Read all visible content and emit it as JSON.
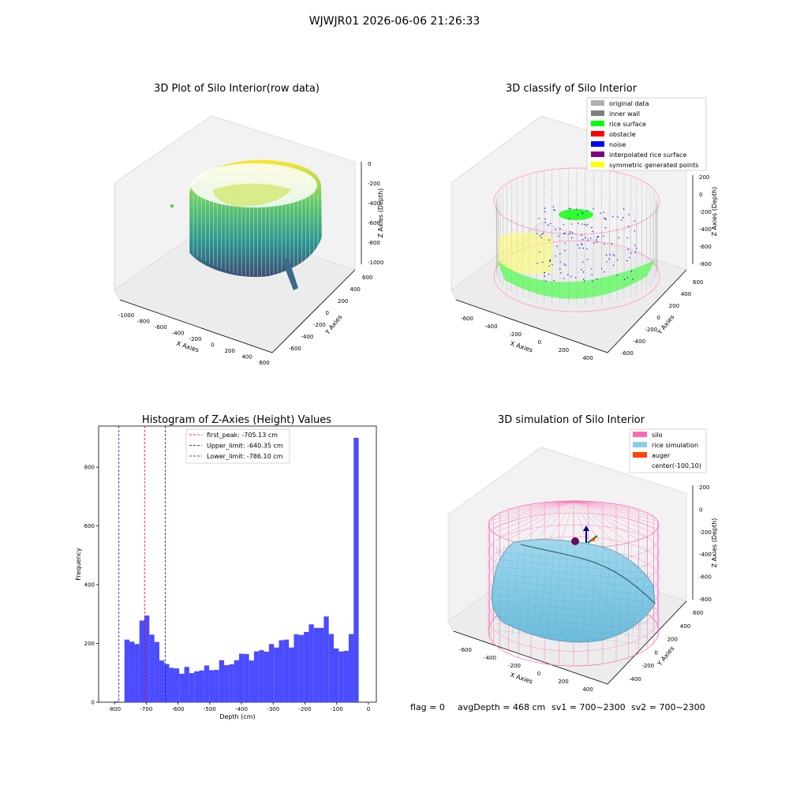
{
  "figure_title": "WJWJR01 2026-06-06 21:26:33",
  "status": {
    "flag": "flag = 0",
    "avg_depth": "avgDepth = 468 cm",
    "sv1": "sv1 = 700~2300",
    "sv2": "sv2 = 700~2300"
  },
  "chart_data": [
    {
      "type": "scatter",
      "title": "3D Plot of Silo Interior(row data)",
      "xlabel": "X Axies",
      "ylabel": "Y Axies",
      "zlabel": "Z Axies (Depth)",
      "x_ticks": [
        "-1000",
        "-800",
        "-600",
        "-400",
        "-200",
        "0",
        "200",
        "400",
        "600"
      ],
      "y_ticks": [
        "-600",
        "-400",
        "-200",
        "0",
        "200",
        "400",
        "600"
      ],
      "z_ticks": [
        "0",
        "-200",
        "-400",
        "-600",
        "-800",
        "-1000"
      ],
      "colormap": [
        "#440154",
        "#3b528b",
        "#21918c",
        "#5ec962",
        "#fde725"
      ]
    },
    {
      "type": "scatter",
      "title": "3D classify of Silo Interior",
      "x_ticks": [
        "-600",
        "-400",
        "-200",
        "0",
        "200",
        "400"
      ],
      "y_ticks": [
        "-600",
        "-400",
        "-200",
        "0",
        "200",
        "400",
        "600"
      ],
      "z_ticks": [
        "200",
        "0",
        "-200",
        "-400",
        "-600",
        "-800"
      ],
      "xlabel": "X Axies",
      "ylabel": "Y Axies",
      "zlabel": "Z Axies (Depth)",
      "legend_position": "top-right",
      "legend": [
        {
          "label": "original data",
          "color": "#b0b0b0"
        },
        {
          "label": "inner wall",
          "color": "#808080"
        },
        {
          "label": "rice surface",
          "color": "#00ff00"
        },
        {
          "label": "obstacle",
          "color": "#ff0000"
        },
        {
          "label": "noise",
          "color": "#0000ff"
        },
        {
          "label": "interpolated rice surface",
          "color": "#800080"
        },
        {
          "label": "symmetric generated points",
          "color": "#ffff00"
        }
      ]
    },
    {
      "type": "bar",
      "title": "Histogram of Z-Axies (Height) Values",
      "xlabel": "Depth (cm)",
      "ylabel": "Frequency",
      "xlim": [
        -850,
        25
      ],
      "ylim": [
        0,
        940
      ],
      "x_ticks": [
        -800,
        -700,
        -600,
        -500,
        -400,
        -300,
        -200,
        -100,
        0
      ],
      "y_ticks": [
        0,
        200,
        400,
        600,
        800
      ],
      "bin_width": 15.7,
      "bar_color": "#4b4bff",
      "bins": [
        {
          "x0": -800,
          "value": 3
        },
        {
          "x0": -784.3,
          "value": 0
        },
        {
          "x0": -768.6,
          "value": 213
        },
        {
          "x0": -752.9,
          "value": 206
        },
        {
          "x0": -737.2,
          "value": 198
        },
        {
          "x0": -721.5,
          "value": 278
        },
        {
          "x0": -705.8,
          "value": 295
        },
        {
          "x0": -690.1,
          "value": 230
        },
        {
          "x0": -674.4,
          "value": 205
        },
        {
          "x0": -658.7,
          "value": 142
        },
        {
          "x0": -643.0,
          "value": 130
        },
        {
          "x0": -627.3,
          "value": 117
        },
        {
          "x0": -611.6,
          "value": 115
        },
        {
          "x0": -595.9,
          "value": 97
        },
        {
          "x0": -580.2,
          "value": 120
        },
        {
          "x0": -564.5,
          "value": 99
        },
        {
          "x0": -548.8,
          "value": 105
        },
        {
          "x0": -533.1,
          "value": 108
        },
        {
          "x0": -517.4,
          "value": 125
        },
        {
          "x0": -501.7,
          "value": 109
        },
        {
          "x0": -486.0,
          "value": 110
        },
        {
          "x0": -470.3,
          "value": 143
        },
        {
          "x0": -454.6,
          "value": 126
        },
        {
          "x0": -438.9,
          "value": 129
        },
        {
          "x0": -423.2,
          "value": 143
        },
        {
          "x0": -407.5,
          "value": 165
        },
        {
          "x0": -391.8,
          "value": 164
        },
        {
          "x0": -376.1,
          "value": 142
        },
        {
          "x0": -360.4,
          "value": 173
        },
        {
          "x0": -344.7,
          "value": 177
        },
        {
          "x0": -329.0,
          "value": 172
        },
        {
          "x0": -313.3,
          "value": 198
        },
        {
          "x0": -297.6,
          "value": 186
        },
        {
          "x0": -281.9,
          "value": 211
        },
        {
          "x0": -266.2,
          "value": 213
        },
        {
          "x0": -250.5,
          "value": 186
        },
        {
          "x0": -234.8,
          "value": 231
        },
        {
          "x0": -219.1,
          "value": 229
        },
        {
          "x0": -203.4,
          "value": 239
        },
        {
          "x0": -187.7,
          "value": 265
        },
        {
          "x0": -172.0,
          "value": 253
        },
        {
          "x0": -156.3,
          "value": 253
        },
        {
          "x0": -140.6,
          "value": 292
        },
        {
          "x0": -124.9,
          "value": 232
        },
        {
          "x0": -109.2,
          "value": 183
        },
        {
          "x0": -93.5,
          "value": 173
        },
        {
          "x0": -77.8,
          "value": 175
        },
        {
          "x0": -62.1,
          "value": 232
        },
        {
          "x0": -46.4,
          "value": 900
        }
      ],
      "vlines": [
        {
          "label": "first_peak: -705.13 cm",
          "x": -705.13,
          "color": "#ff0000"
        },
        {
          "label": "Upper_limit: -640.35 cm",
          "x": -640.35,
          "color": "#0000aa"
        },
        {
          "label": "Lower_limit: -786.10 cm",
          "x": -786.1,
          "color": "#0000ff"
        }
      ],
      "legend_position": "top-center"
    },
    {
      "type": "surface",
      "title": "3D simulation of Silo Interior",
      "xlabel": "X Axies",
      "ylabel": "Y Axies",
      "zlabel": "Z Axies (Depth)",
      "x_ticks": [
        "-600",
        "-400",
        "-200",
        "0",
        "200",
        "400"
      ],
      "y_ticks": [
        "-400",
        "-200",
        "0",
        "200",
        "400",
        "600"
      ],
      "z_ticks": [
        "200",
        "0",
        "-200",
        "-400",
        "-600",
        "-800"
      ],
      "legend_position": "top-right",
      "legend": [
        {
          "label": "silo",
          "color": "#ff69b4"
        },
        {
          "label": "rice simulation",
          "color": "#87ceeb"
        },
        {
          "label": "auger",
          "color": "#ff4500"
        },
        {
          "label": "center(-100,10)",
          "color": ""
        }
      ]
    }
  ]
}
